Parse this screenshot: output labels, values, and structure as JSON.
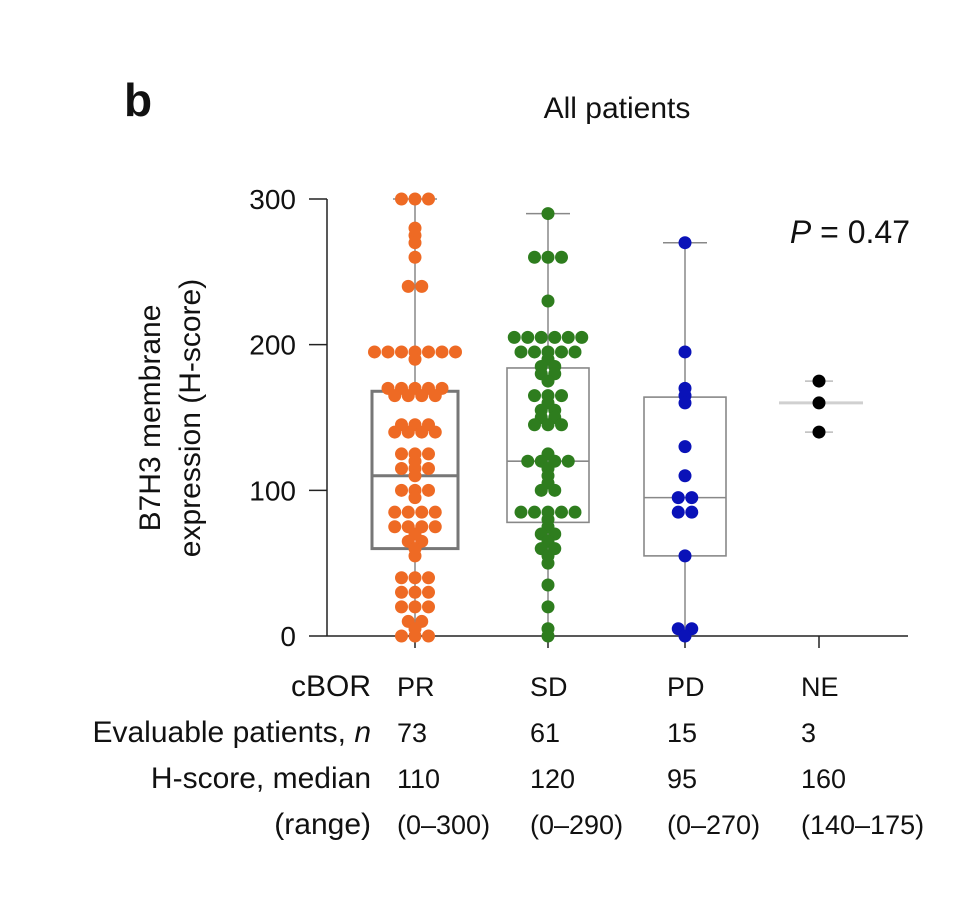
{
  "panel_label": "b",
  "chart_data": {
    "type": "scatter",
    "title": "All patients",
    "ylabel_line1": "B7H3 membrane",
    "ylabel_line2": "expression (H-score)",
    "ylim": [
      0,
      300
    ],
    "yticks": [
      0,
      100,
      200,
      300
    ],
    "annotation": {
      "italic": "P",
      "text": " = 0.47"
    },
    "row_labels": {
      "category": "cBOR",
      "n_prefix": "Evaluable patients, ",
      "n_italic": "n",
      "median": "H-score, median",
      "range": "(range)"
    },
    "groups": [
      {
        "name": "PR",
        "n": "73",
        "median_label": "110",
        "range_label": "(0–300)",
        "color": "#ee6a24",
        "box": {
          "q1": 60,
          "median": 110,
          "q3": 168,
          "min": 0,
          "max": 300
        },
        "points": [
          300,
          300,
          300,
          280,
          275,
          270,
          260,
          240,
          240,
          195,
          195,
          195,
          195,
          195,
          195,
          195,
          190,
          170,
          170,
          170,
          170,
          170,
          165,
          165,
          165,
          165,
          145,
          145,
          145,
          140,
          140,
          140,
          140,
          125,
          125,
          125,
          120,
          115,
          115,
          115,
          110,
          100,
          100,
          100,
          95,
          85,
          85,
          85,
          85,
          75,
          75,
          75,
          75,
          70,
          65,
          65,
          60,
          55,
          40,
          40,
          40,
          30,
          30,
          30,
          20,
          20,
          20,
          10,
          10,
          5,
          0,
          0,
          0
        ]
      },
      {
        "name": "SD",
        "n": "61",
        "median_label": "120",
        "range_label": "(0–290)",
        "color": "#2e7d1e",
        "box": {
          "q1": 78,
          "median": 120,
          "q3": 184,
          "min": 0,
          "max": 290
        },
        "points": [
          290,
          260,
          260,
          260,
          230,
          205,
          205,
          205,
          205,
          205,
          205,
          195,
          195,
          195,
          195,
          195,
          190,
          185,
          185,
          180,
          180,
          175,
          165,
          165,
          165,
          160,
          155,
          155,
          150,
          150,
          145,
          145,
          145,
          125,
          120,
          120,
          120,
          120,
          115,
          110,
          105,
          100,
          100,
          85,
          85,
          85,
          85,
          85,
          80,
          75,
          70,
          70,
          65,
          60,
          60,
          55,
          50,
          35,
          20,
          5,
          0
        ]
      },
      {
        "name": "PD",
        "n": "15",
        "median_label": "95",
        "range_label": "(0–270)",
        "color": "#0a12b8",
        "box": {
          "q1": 55,
          "median": 95,
          "q3": 164,
          "min": 0,
          "max": 270
        },
        "points": [
          270,
          195,
          170,
          165,
          160,
          130,
          110,
          95,
          95,
          85,
          85,
          55,
          5,
          5,
          0
        ]
      },
      {
        "name": "NE",
        "n": "3",
        "median_label": "160",
        "range_label": "(140–175)",
        "color": "#000000",
        "box": {
          "q1": 140,
          "median": 160,
          "q3": 175,
          "min": 140,
          "max": 175
        },
        "points": [
          175,
          160,
          140
        ]
      }
    ]
  }
}
